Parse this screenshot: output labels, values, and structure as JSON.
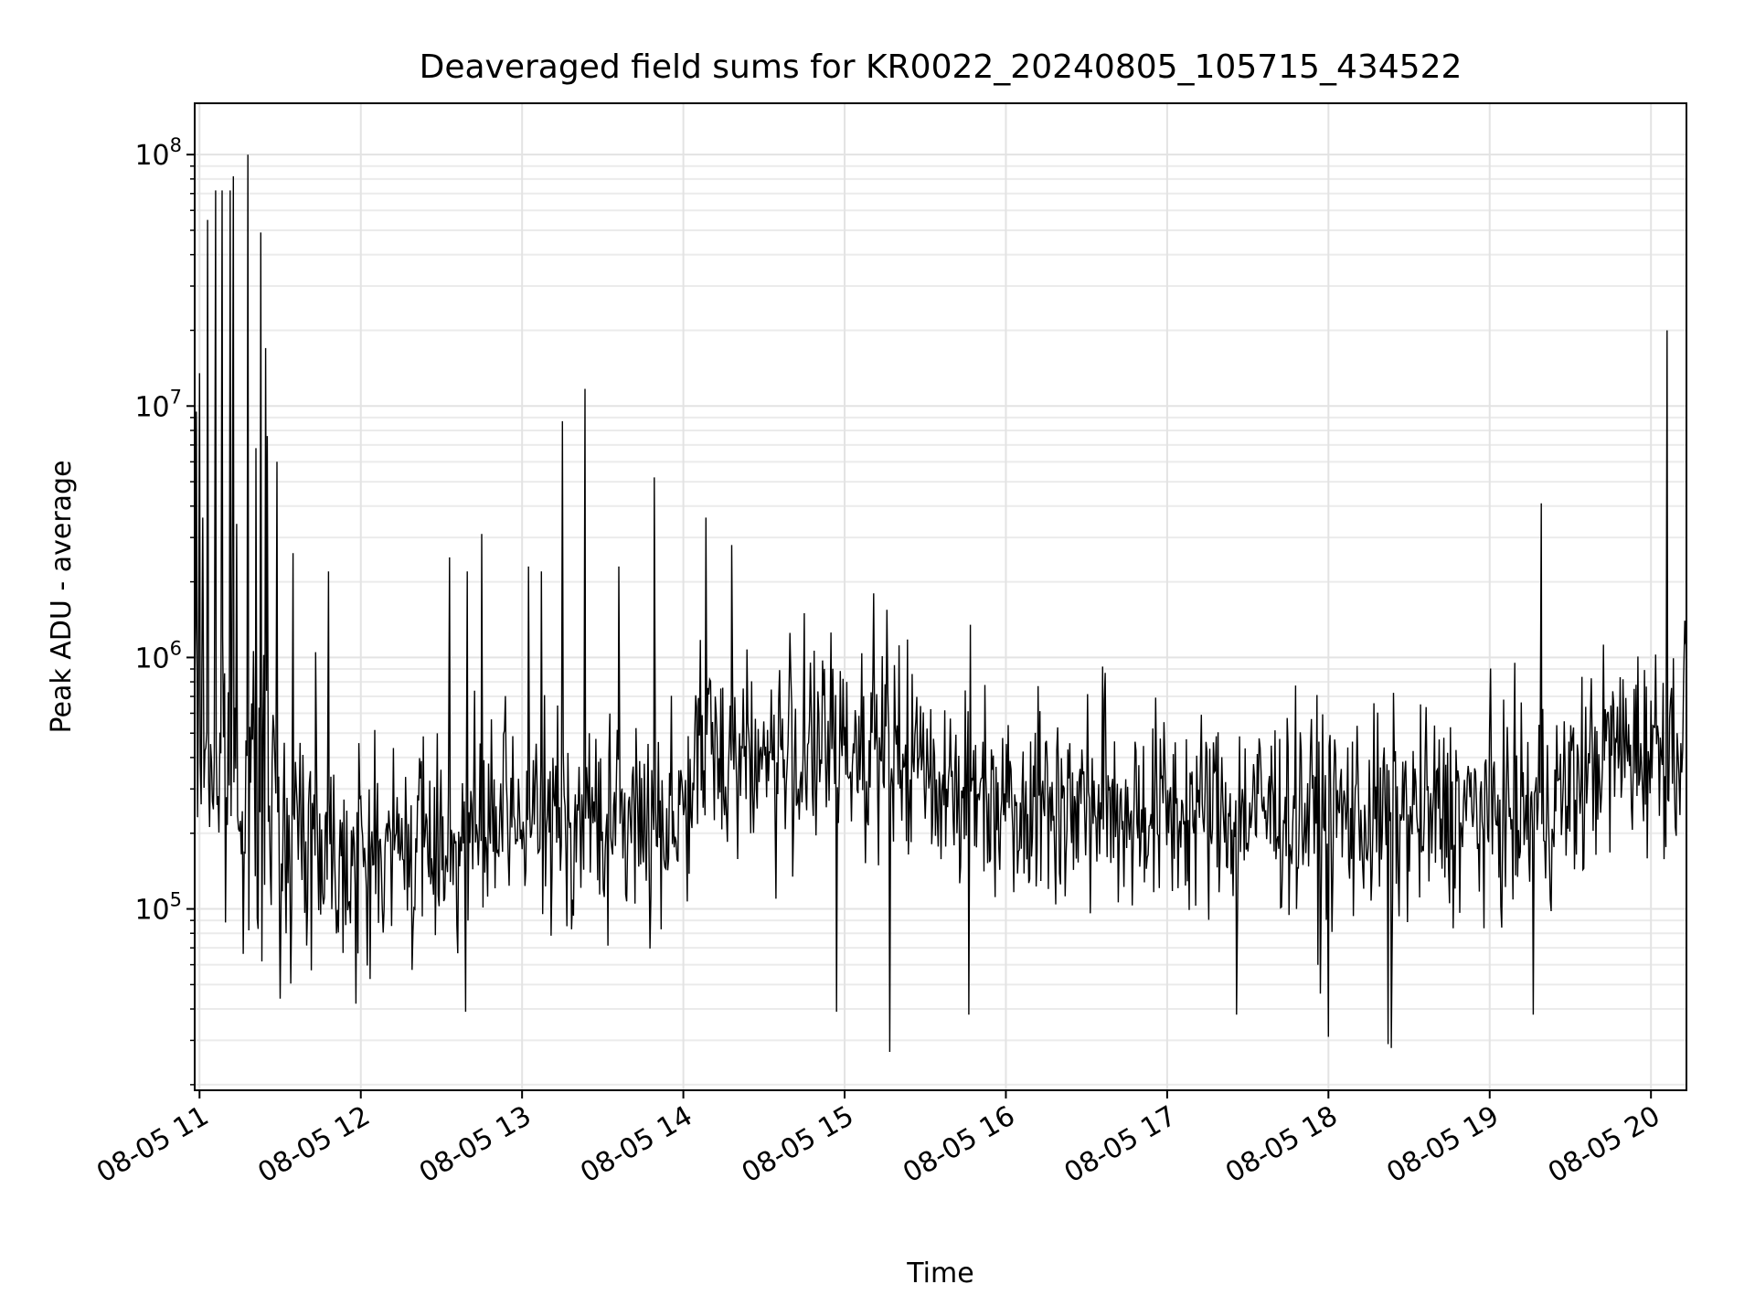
{
  "chart_data": {
    "type": "line",
    "title": "Deaveraged field sums for KR0022_20240805_105715_434522",
    "xlabel": "Time",
    "ylabel": "Peak ADU - average",
    "x_tick_labels": [
      "08-05 11",
      "08-05 12",
      "08-05 13",
      "08-05 14",
      "08-05 15",
      "08-05 16",
      "08-05 17",
      "08-05 18",
      "08-05 19",
      "08-05 20"
    ],
    "y_tick_labels": [
      {
        "base": "10",
        "exp": "5"
      },
      {
        "base": "10",
        "exp": "6"
      },
      {
        "base": "10",
        "exp": "7"
      },
      {
        "base": "10",
        "exp": "8"
      }
    ],
    "y_scale": "log",
    "ylim": [
      19000,
      160000000
    ],
    "xlim_hours": [
      10.97,
      20.22
    ],
    "grid": true,
    "line_color": "#000000",
    "baseline": [
      [
        10.97,
        450000
      ],
      [
        11.0,
        400000
      ],
      [
        11.1,
        350000
      ],
      [
        11.2,
        320000
      ],
      [
        11.3,
        280000
      ],
      [
        11.4,
        230000
      ],
      [
        11.6,
        200000
      ],
      [
        11.8,
        180000
      ],
      [
        12.0,
        160000
      ],
      [
        12.2,
        170000
      ],
      [
        12.5,
        190000
      ],
      [
        12.8,
        210000
      ],
      [
        13.0,
        220000
      ],
      [
        13.3,
        230000
      ],
      [
        13.6,
        220000
      ],
      [
        13.9,
        240000
      ],
      [
        14.05,
        280000
      ],
      [
        14.1,
        420000
      ],
      [
        14.3,
        430000
      ],
      [
        14.6,
        390000
      ],
      [
        14.9,
        420000
      ],
      [
        15.1,
        470000
      ],
      [
        15.3,
        420000
      ],
      [
        15.5,
        360000
      ],
      [
        15.8,
        300000
      ],
      [
        16.1,
        280000
      ],
      [
        16.4,
        260000
      ],
      [
        16.8,
        250000
      ],
      [
        17.2,
        240000
      ],
      [
        17.6,
        250000
      ],
      [
        18.0,
        240000
      ],
      [
        18.4,
        230000
      ],
      [
        18.8,
        240000
      ],
      [
        19.2,
        240000
      ],
      [
        19.5,
        290000
      ],
      [
        19.7,
        420000
      ],
      [
        20.0,
        450000
      ],
      [
        20.22,
        480000
      ]
    ],
    "spikes": [
      [
        10.98,
        9500000
      ],
      [
        11.0,
        13500000
      ],
      [
        11.02,
        3600000
      ],
      [
        11.05,
        55000000
      ],
      [
        11.1,
        72000000
      ],
      [
        11.14,
        72000000
      ],
      [
        11.19,
        72000000
      ],
      [
        11.21,
        82000000
      ],
      [
        11.23,
        3400000
      ],
      [
        11.3,
        100000000
      ],
      [
        11.35,
        6800000
      ],
      [
        11.38,
        49000000
      ],
      [
        11.41,
        17000000
      ],
      [
        11.42,
        7600000
      ],
      [
        11.48,
        6000000
      ],
      [
        11.58,
        2600000
      ],
      [
        11.72,
        1050000
      ],
      [
        11.8,
        2200000
      ],
      [
        12.55,
        2500000
      ],
      [
        12.66,
        2200000
      ],
      [
        12.75,
        3100000
      ],
      [
        13.04,
        2300000
      ],
      [
        13.12,
        2200000
      ],
      [
        13.25,
        8700000
      ],
      [
        13.39,
        11700000
      ],
      [
        13.6,
        2300000
      ],
      [
        13.82,
        5200000
      ],
      [
        14.14,
        3600000
      ],
      [
        14.3,
        2800000
      ],
      [
        14.75,
        1500000
      ],
      [
        15.18,
        1800000
      ],
      [
        15.78,
        1350000
      ],
      [
        16.6,
        920000
      ],
      [
        19.32,
        4100000
      ],
      [
        20.1,
        20000000
      ],
      [
        20.21,
        1400000
      ]
    ],
    "dips": [
      [
        11.5,
        44000
      ],
      [
        11.97,
        42000
      ],
      [
        12.65,
        39000
      ],
      [
        14.95,
        39000
      ],
      [
        15.28,
        27000
      ],
      [
        15.77,
        38000
      ],
      [
        17.43,
        38000
      ],
      [
        17.95,
        46000
      ],
      [
        18.0,
        31000
      ],
      [
        18.37,
        29000
      ],
      [
        18.39,
        28000
      ],
      [
        19.27,
        38000
      ]
    ]
  }
}
